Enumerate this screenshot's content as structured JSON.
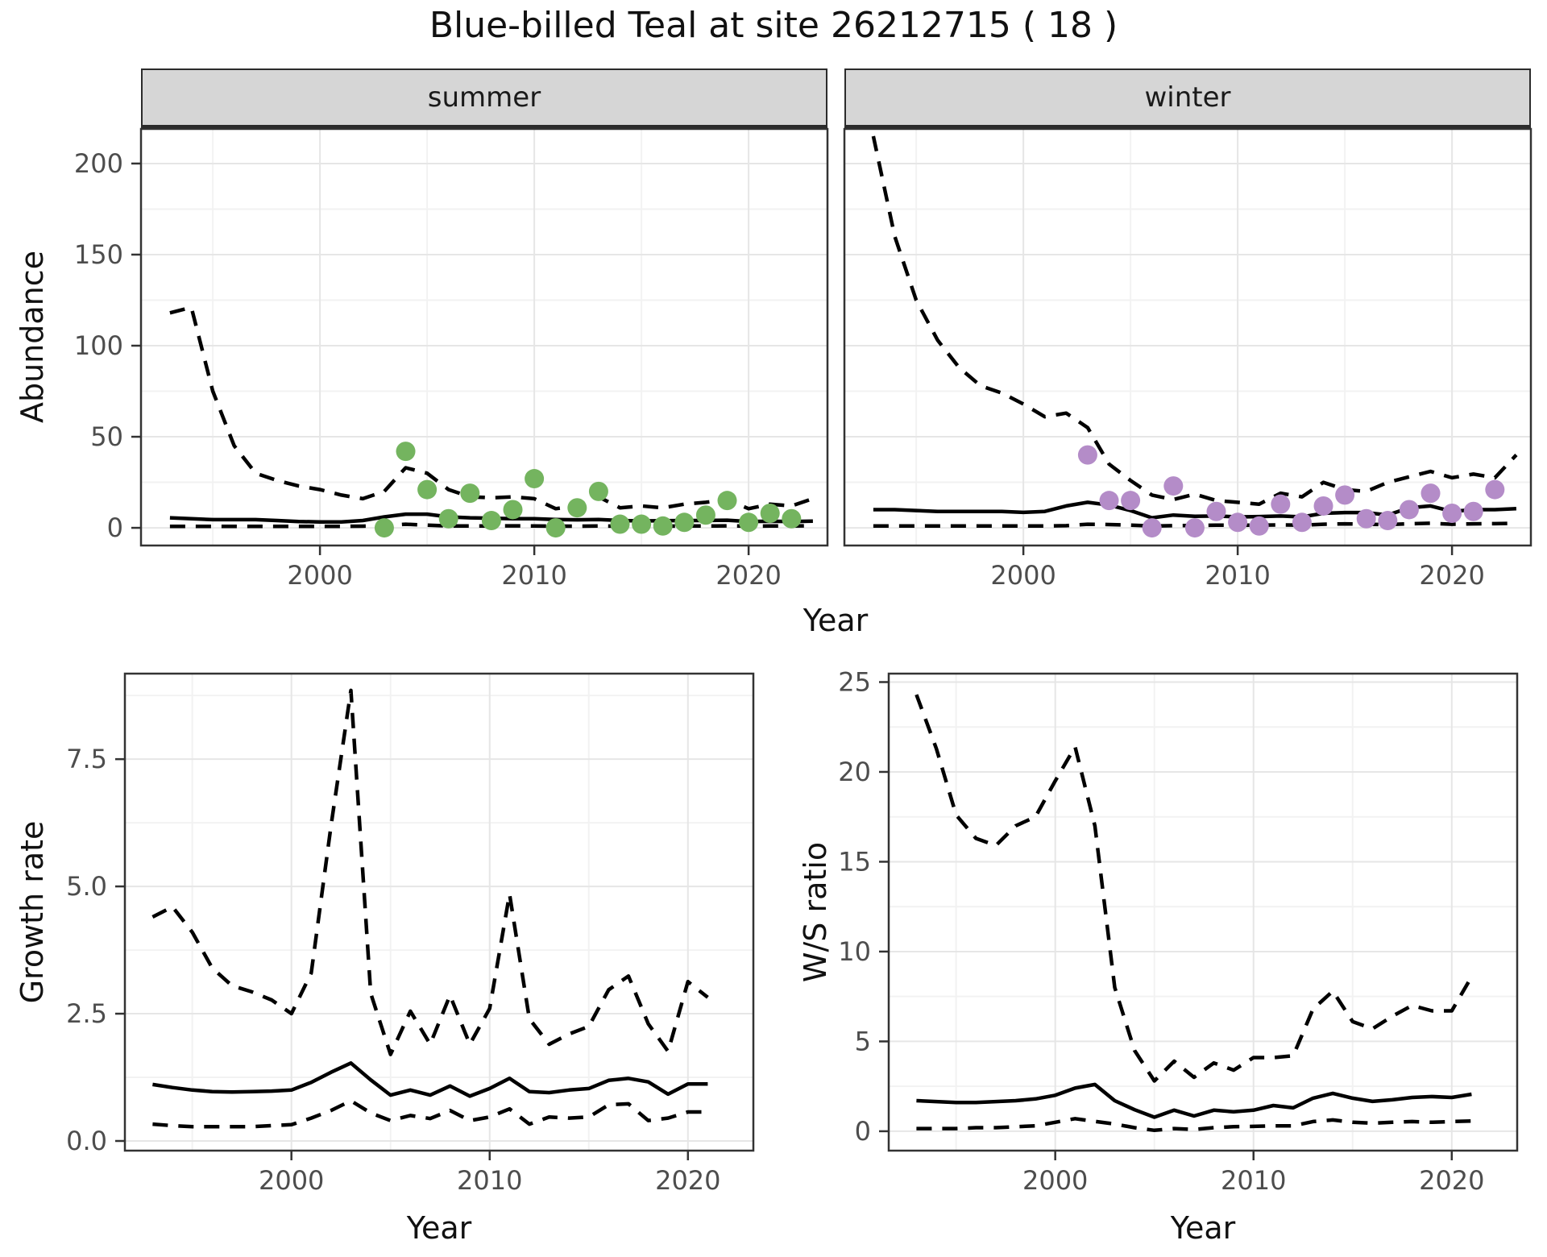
{
  "title": "Blue-billed Teal at site 26212715 ( 18 )",
  "facets": {
    "summer_label": "summer",
    "winter_label": "winter"
  },
  "axis_titles": {
    "abundance": "Abundance",
    "growth": "Growth rate",
    "ws": "W/S ratio",
    "year": "Year"
  },
  "colors": {
    "summer_points": "#74b45f",
    "winter_points": "#b48cc8",
    "line": "#000000",
    "strip_bg": "#d6d6d6",
    "panel_border": "#333333",
    "grid_major": "#e6e6e6",
    "grid_minor": "#f2f2f2",
    "tick_text": "#4d4d4d"
  },
  "chart_data": [
    {
      "id": "abundance-summer",
      "type": "line",
      "facet": "summer",
      "ylabel": "Abundance",
      "xlabel": "Year",
      "xlim": [
        1991.65,
        2023.68
      ],
      "ylim": [
        -9.7,
        219
      ],
      "grid": true,
      "show_yticks": true,
      "xticks": {
        "major": [
          2000,
          2010,
          2020
        ],
        "minor": [
          1995,
          2005,
          2015
        ],
        "labels": [
          "2000",
          "2010",
          "2020"
        ]
      },
      "yticks": {
        "major": [
          0,
          50,
          100,
          150,
          200
        ],
        "minor": [
          25,
          75,
          125,
          175
        ],
        "labels": [
          "0",
          "50",
          "100",
          "150",
          "200"
        ]
      },
      "series": [
        {
          "name": "upper-ci",
          "style": "dashed",
          "x_start": 1993,
          "y": [
            118,
            121,
            75,
            45,
            30,
            26,
            23,
            21,
            18,
            16,
            20,
            33,
            30,
            21,
            17,
            16.5,
            17,
            16,
            10.5,
            12,
            17,
            11,
            12,
            11,
            13,
            14,
            15.5,
            10.5,
            13,
            12,
            16
          ]
        },
        {
          "name": "median",
          "style": "solid",
          "x_start": 1993,
          "y": [
            5.5,
            5,
            4.5,
            4.5,
            4.5,
            4,
            3.5,
            3.2,
            3.2,
            4,
            6,
            7.5,
            7.5,
            6,
            5.5,
            5.3,
            5,
            5,
            4.6,
            4.4,
            4.6,
            4,
            3.8,
            3.9,
            4,
            4,
            4.2,
            3.5,
            3.6,
            3.5,
            3.7
          ]
        },
        {
          "name": "lower-ci",
          "style": "dashed",
          "x_start": 1993,
          "y": [
            0.8,
            0.8,
            0.8,
            0.8,
            0.8,
            0.8,
            0.8,
            0.8,
            0.8,
            0.9,
            1.2,
            2,
            1.5,
            1,
            1,
            1,
            1.1,
            1,
            0.9,
            0.9,
            1,
            0.9,
            0.9,
            0.9,
            1,
            1,
            1.1,
            0.9,
            1,
            1,
            1.2
          ]
        },
        {
          "name": "observations",
          "style": "points",
          "color": "#74b45f",
          "x_start": 2003,
          "y": [
            0,
            42,
            21,
            5,
            19,
            4,
            10,
            27,
            0,
            11,
            20,
            2,
            2,
            1,
            3,
            7,
            15,
            3,
            8,
            5
          ]
        }
      ]
    },
    {
      "id": "abundance-winter",
      "type": "line",
      "facet": "winter",
      "ylabel": "Abundance",
      "xlabel": "Year",
      "xlim": [
        1991.65,
        2023.68
      ],
      "ylim": [
        -9.7,
        219
      ],
      "grid": true,
      "show_yticks": false,
      "xticks": {
        "major": [
          2000,
          2010,
          2020
        ],
        "minor": [
          1995,
          2005,
          2015
        ],
        "labels": [
          "2000",
          "2010",
          "2020"
        ]
      },
      "yticks": {
        "major": [
          0,
          50,
          100,
          150,
          200
        ],
        "minor": [
          25,
          75,
          125,
          175
        ],
        "labels": [
          "0",
          "50",
          "100",
          "150",
          "200"
        ]
      },
      "series": [
        {
          "name": "upper-ci",
          "style": "dashed",
          "x_start": 1993,
          "y": [
            215,
            160,
            125,
            103,
            88,
            78,
            74,
            68,
            61,
            63,
            55,
            35,
            26,
            18,
            15.5,
            18.5,
            15,
            14,
            13,
            19,
            17,
            25,
            21,
            20,
            25,
            28,
            31,
            27.5,
            29.5,
            27.5,
            40
          ]
        },
        {
          "name": "median",
          "style": "solid",
          "x_start": 1993,
          "y": [
            10,
            10,
            9.5,
            9,
            9,
            9,
            9,
            8.5,
            9,
            12,
            14,
            12.5,
            9.5,
            5.5,
            7,
            6.3,
            6.5,
            6,
            6.2,
            6.5,
            6,
            8,
            8.4,
            8.4,
            7,
            11,
            12,
            9,
            10,
            10,
            10.5
          ]
        },
        {
          "name": "lower-ci",
          "style": "dashed",
          "x_start": 1993,
          "y": [
            1,
            1,
            1,
            1,
            1,
            1,
            1,
            1,
            1,
            1.2,
            2,
            1.8,
            1.5,
            1,
            1.2,
            1.3,
            1.5,
            1.4,
            1.5,
            1.6,
            1.5,
            2,
            2.2,
            2,
            1.8,
            2.2,
            2.5,
            2,
            2.2,
            2.3,
            2.5
          ]
        },
        {
          "name": "observations",
          "style": "points",
          "color": "#b48cc8",
          "x_start": 2003,
          "y": [
            40,
            15,
            15,
            0,
            23,
            0,
            9,
            3,
            1,
            13,
            3,
            12,
            18,
            5,
            4,
            10,
            19,
            8,
            9,
            21
          ]
        }
      ]
    },
    {
      "id": "growth-rate",
      "type": "line",
      "facet": null,
      "ylabel": "Growth rate",
      "xlabel": "Year",
      "xlim": [
        1991.6,
        2023.3
      ],
      "ylim": [
        -0.19,
        9.18
      ],
      "grid": true,
      "show_yticks": true,
      "xticks": {
        "major": [
          2000,
          2010,
          2020
        ],
        "minor": [
          1995,
          2005,
          2015
        ],
        "labels": [
          "2000",
          "2010",
          "2020"
        ]
      },
      "yticks": {
        "major": [
          0,
          2.5,
          5,
          7.5
        ],
        "minor": [
          1.25,
          3.75,
          6.25,
          8.75
        ],
        "labels": [
          "0.0",
          "2.5",
          "5.0",
          "7.5"
        ]
      },
      "series": [
        {
          "name": "upper-ci",
          "style": "dashed",
          "x_start": 1993,
          "y": [
            4.4,
            4.6,
            4.1,
            3.4,
            3.05,
            2.93,
            2.77,
            2.5,
            3.3,
            6.2,
            8.85,
            2.9,
            1.7,
            2.55,
            1.9,
            2.86,
            1.9,
            2.6,
            4.85,
            2.4,
            1.9,
            2.1,
            2.25,
            2.97,
            3.24,
            2.3,
            1.76,
            3.13,
            2.82
          ]
        },
        {
          "name": "median",
          "style": "solid",
          "x_start": 1993,
          "y": [
            1.11,
            1.05,
            1.0,
            0.97,
            0.96,
            0.97,
            0.98,
            1.0,
            1.15,
            1.35,
            1.53,
            1.2,
            0.9,
            1.0,
            0.9,
            1.08,
            0.88,
            1.03,
            1.23,
            0.97,
            0.95,
            1.0,
            1.03,
            1.19,
            1.23,
            1.16,
            0.92,
            1.12,
            1.12
          ]
        },
        {
          "name": "lower-ci",
          "style": "dashed",
          "x_start": 1993,
          "y": [
            0.33,
            0.3,
            0.28,
            0.28,
            0.28,
            0.28,
            0.3,
            0.32,
            0.45,
            0.6,
            0.79,
            0.55,
            0.4,
            0.5,
            0.44,
            0.6,
            0.4,
            0.47,
            0.63,
            0.33,
            0.47,
            0.45,
            0.47,
            0.71,
            0.73,
            0.4,
            0.45,
            0.57,
            0.57
          ]
        }
      ]
    },
    {
      "id": "ws-ratio",
      "type": "line",
      "facet": null,
      "ylabel": "W/S ratio",
      "xlabel": "Year",
      "xlim": [
        1991.6,
        2023.3
      ],
      "ylim": [
        -1.08,
        25.47
      ],
      "grid": true,
      "show_yticks": true,
      "xticks": {
        "major": [
          2000,
          2010,
          2020
        ],
        "minor": [
          1995,
          2005,
          2015
        ],
        "labels": [
          "2000",
          "2010",
          "2020"
        ]
      },
      "yticks": {
        "major": [
          0,
          5,
          10,
          15,
          20,
          25
        ],
        "minor": [
          2.5,
          7.5,
          12.5,
          17.5,
          22.5
        ],
        "labels": [
          "0",
          "5",
          "10",
          "15",
          "20",
          "25"
        ]
      },
      "series": [
        {
          "name": "upper-ci",
          "style": "dashed",
          "x_start": 1993,
          "y": [
            24.3,
            21.3,
            17.6,
            16.3,
            15.9,
            17.0,
            17.5,
            19.5,
            21.4,
            17.0,
            8.0,
            4.5,
            2.8,
            3.9,
            3.0,
            3.8,
            3.4,
            4.1,
            4.1,
            4.2,
            6.8,
            7.8,
            6.1,
            5.7,
            6.4,
            7.0,
            6.7,
            6.7,
            8.6
          ]
        },
        {
          "name": "median",
          "style": "solid",
          "x_start": 1993,
          "y": [
            1.7,
            1.65,
            1.6,
            1.6,
            1.65,
            1.7,
            1.8,
            2.0,
            2.4,
            2.6,
            1.7,
            1.2,
            0.78,
            1.17,
            0.85,
            1.17,
            1.08,
            1.17,
            1.43,
            1.3,
            1.84,
            2.11,
            1.84,
            1.66,
            1.75,
            1.88,
            1.93,
            1.88,
            2.06
          ]
        },
        {
          "name": "lower-ci",
          "style": "dashed",
          "x_start": 1993,
          "y": [
            0.15,
            0.15,
            0.15,
            0.2,
            0.2,
            0.25,
            0.3,
            0.5,
            0.7,
            0.55,
            0.4,
            0.2,
            0.05,
            0.15,
            0.1,
            0.2,
            0.25,
            0.27,
            0.3,
            0.3,
            0.54,
            0.63,
            0.5,
            0.45,
            0.5,
            0.54,
            0.5,
            0.54,
            0.57
          ]
        }
      ]
    }
  ]
}
